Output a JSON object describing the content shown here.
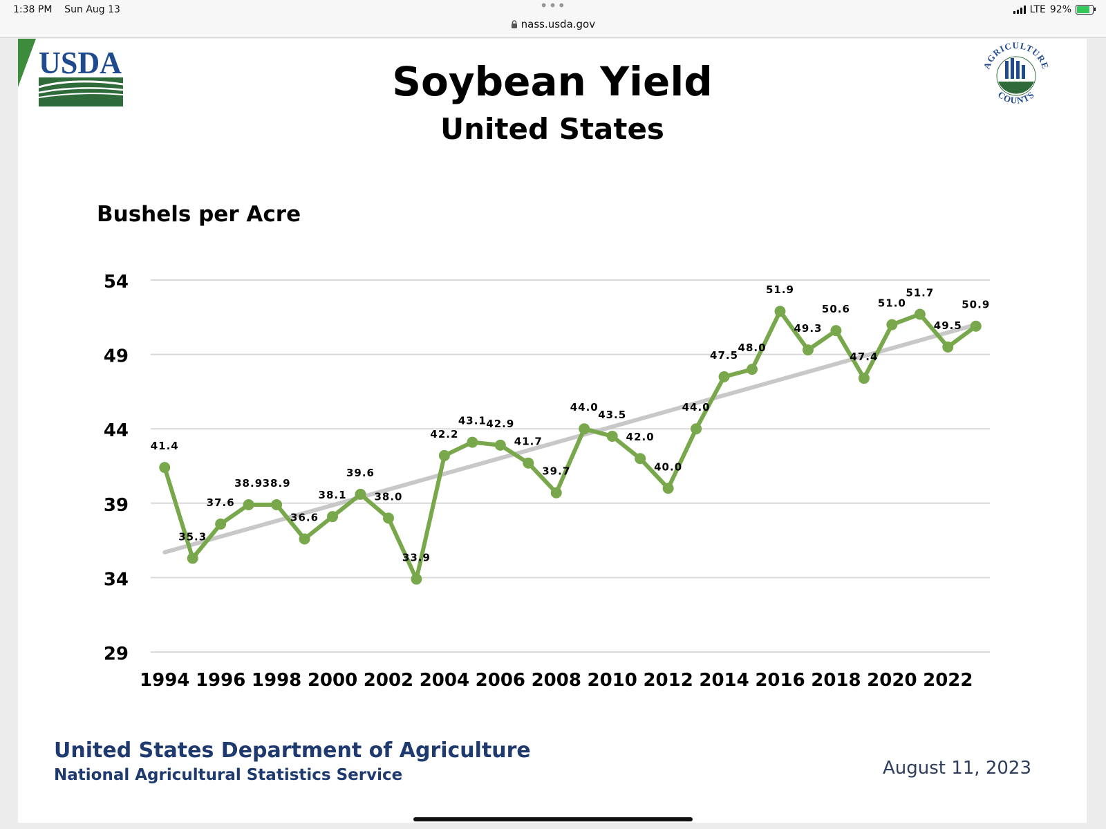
{
  "status_bar": {
    "time": "1:38 PM",
    "date": "Sun Aug 13",
    "url": "nass.usda.gov",
    "network": "LTE",
    "battery": "92%",
    "battery_level": 0.92
  },
  "colors": {
    "line": "#78a84b",
    "trend": "#c8c8c8",
    "grid": "#d9d9d9",
    "navy": "#1f3a6e",
    "usda_blue": "#1f4b8e",
    "usda_green": "#2f6b3a"
  },
  "logos": {
    "usda": "USDA",
    "agriculture_counts": "AGRICULTURE COUNTS"
  },
  "chart_data": {
    "type": "line",
    "title": "Soybean Yield",
    "subtitle": "United States",
    "ylabel": "Bushels per Acre",
    "xlabel": "",
    "ylim": [
      29,
      54
    ],
    "yticks": [
      29,
      34,
      39,
      44,
      49,
      54
    ],
    "xticks": [
      1994,
      1996,
      1998,
      2000,
      2002,
      2004,
      2006,
      2008,
      2010,
      2012,
      2014,
      2016,
      2018,
      2020,
      2022
    ],
    "grid": true,
    "x": [
      1994,
      1995,
      1996,
      1997,
      1998,
      1999,
      2000,
      2001,
      2002,
      2003,
      2004,
      2005,
      2006,
      2007,
      2008,
      2009,
      2010,
      2011,
      2012,
      2013,
      2014,
      2015,
      2016,
      2017,
      2018,
      2019,
      2020,
      2021,
      2022,
      2023
    ],
    "series": [
      {
        "name": "Yield",
        "values": [
          41.4,
          35.3,
          37.6,
          38.9,
          38.9,
          36.6,
          38.1,
          39.6,
          38.0,
          33.9,
          42.2,
          43.1,
          42.9,
          41.7,
          39.7,
          44.0,
          43.5,
          42.0,
          40.0,
          44.0,
          47.5,
          48.0,
          51.9,
          49.3,
          50.6,
          47.4,
          51.0,
          51.7,
          49.5,
          50.9
        ],
        "labels": [
          "41.4",
          "35.3",
          "37.6",
          "38.9",
          "38.9",
          "36.6",
          "38.1",
          "39.6",
          "38.0",
          "33.9",
          "42.2",
          "43.1",
          "42.9",
          "41.7",
          "39.7",
          "44.0",
          "43.5",
          "42.0",
          "40.0",
          "44.0",
          "47.5",
          "48.0",
          "51.9",
          "49.3",
          "50.6",
          "47.4",
          "51.0",
          "51.7",
          "49.5",
          "50.9"
        ]
      }
    ],
    "trend": {
      "name": "Trend",
      "x": [
        1994,
        2023
      ],
      "values": [
        35.7,
        51.0
      ]
    }
  },
  "footer": {
    "agency": "United States Department of Agriculture",
    "service": "National Agricultural Statistics Service",
    "date": "August 11, 2023"
  }
}
